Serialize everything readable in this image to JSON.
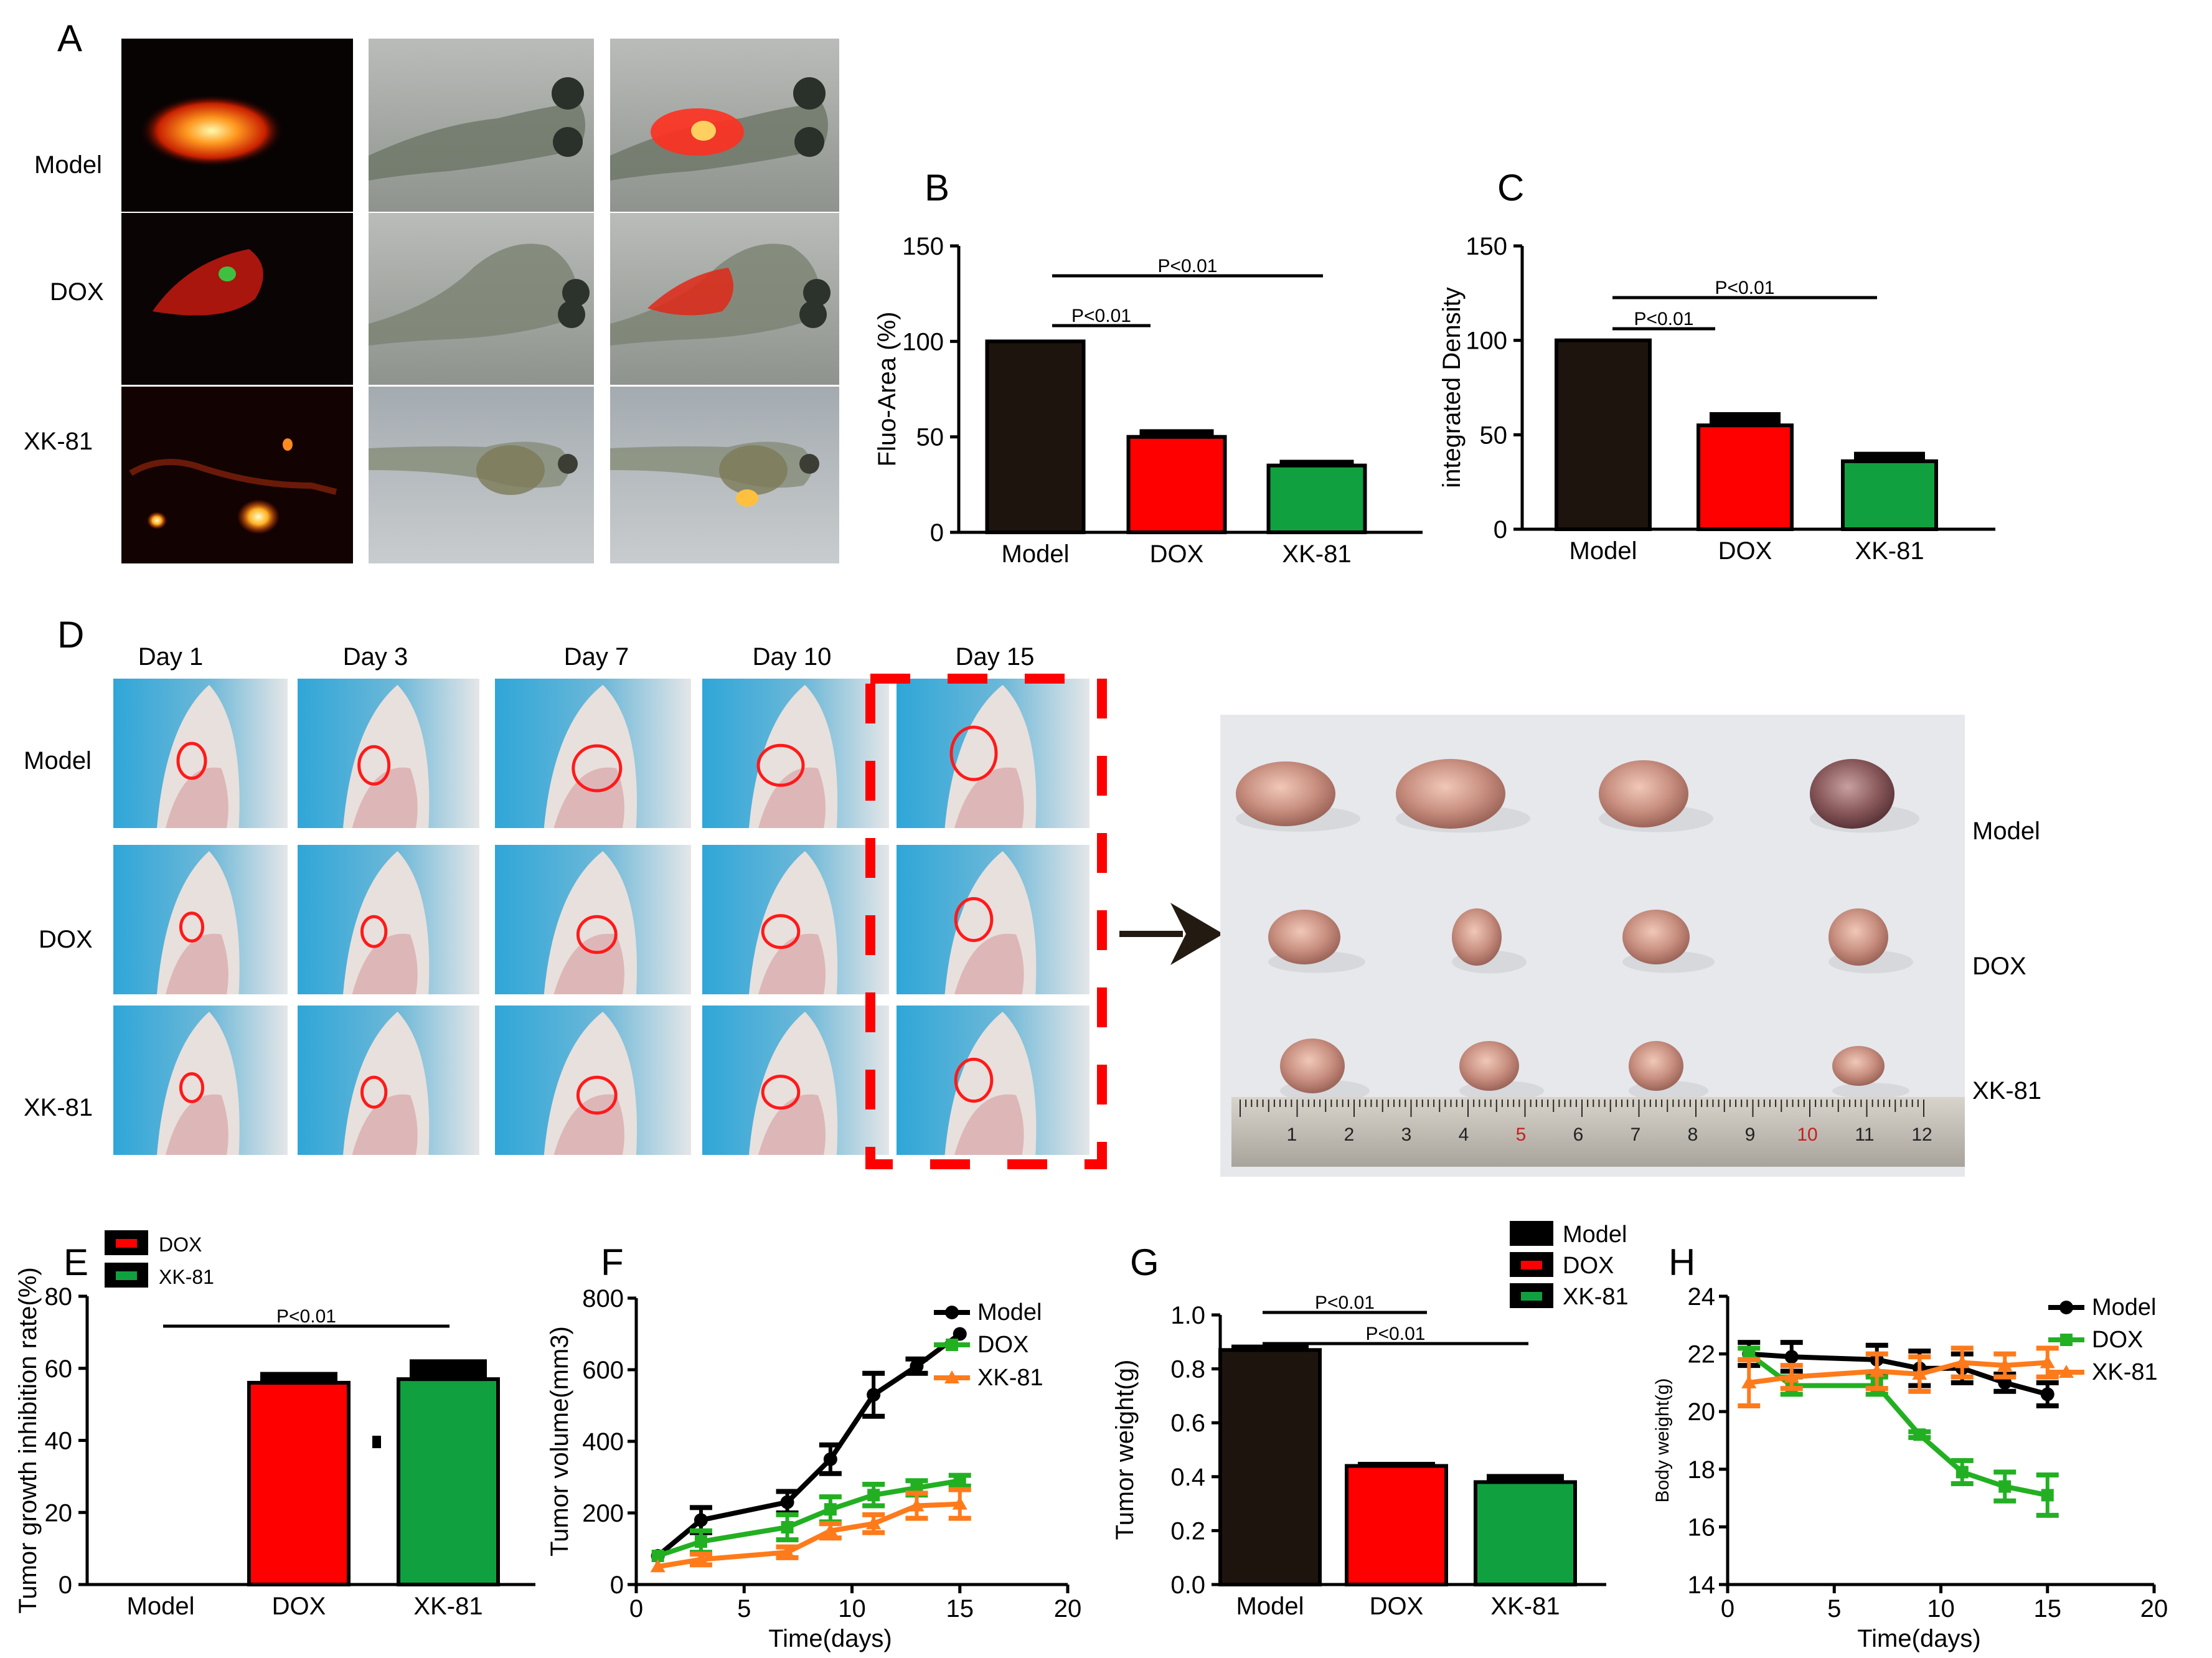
{
  "panels": {
    "A": "A",
    "B": "B",
    "C": "C",
    "D": "D",
    "E": "E",
    "F": "F",
    "G": "G",
    "H": "H"
  },
  "panel_a_rows": [
    "Model",
    "DOX",
    "XK-81"
  ],
  "panel_d_days": [
    "Day 1",
    "Day 3",
    "Day 7",
    "Day 10",
    "Day 15"
  ],
  "panel_d_rows": [
    "Model",
    "DOX",
    "XK-81"
  ],
  "tumor_photo_labels": [
    "Model",
    "DOX",
    "XK-81"
  ],
  "ruler_numbers": [
    "1",
    "2",
    "3",
    "4",
    "5",
    "6",
    "7",
    "8",
    "9",
    "10",
    "11",
    "12"
  ],
  "colors": {
    "model": "#1e140e",
    "dox": "#ff0000",
    "xk81": "#10a040",
    "model_line": "#000000",
    "dox_line": "#22b022",
    "xk81_line": "#ff7a1a",
    "dashed_box": "#ff0000"
  },
  "chart_data": [
    {
      "id": "B",
      "type": "bar",
      "ylabel": "Fluo-Area (%)",
      "categories": [
        "Model",
        "DOX",
        "XK-81"
      ],
      "values": [
        100,
        50,
        35
      ],
      "errors": [
        0,
        4,
        3
      ],
      "ylim": [
        0,
        150
      ],
      "yticks": [
        "0",
        "50",
        "100",
        "150"
      ],
      "significance": [
        {
          "label": "P<0.01",
          "from": 0,
          "to": 1
        },
        {
          "label": "P<0.01",
          "from": 0,
          "to": 2
        }
      ]
    },
    {
      "id": "C",
      "type": "bar",
      "ylabel": "integrated Density",
      "categories": [
        "Model",
        "DOX",
        "XK-81"
      ],
      "values": [
        100,
        55,
        36
      ],
      "errors": [
        0,
        7,
        5
      ],
      "ylim": [
        0,
        150
      ],
      "yticks": [
        "0",
        "50",
        "100",
        "150"
      ],
      "significance": [
        {
          "label": "P<0.01",
          "from": 0,
          "to": 1
        },
        {
          "label": "P<0.01",
          "from": 0,
          "to": 2
        }
      ]
    },
    {
      "id": "E",
      "type": "bar",
      "ylabel": "Tumor growth inhibition rate(%)",
      "categories": [
        "Model",
        "DOX",
        "XK-81"
      ],
      "values": [
        0,
        56,
        57
      ],
      "errors": [
        0,
        3,
        5.5
      ],
      "ylim": [
        0,
        80
      ],
      "yticks": [
        "0",
        "20",
        "40",
        "60",
        "80"
      ],
      "legend": [
        "DOX",
        "XK-81"
      ],
      "significance": [
        {
          "label": "P<0.01",
          "from": 0,
          "to": 2
        }
      ]
    },
    {
      "id": "F",
      "type": "line",
      "xlabel": "Time(days)",
      "ylabel": "Tumor volume(mm3)",
      "xlim": [
        0,
        20
      ],
      "ylim": [
        0,
        800
      ],
      "xticks": [
        "0",
        "5",
        "10",
        "15",
        "20"
      ],
      "yticks": [
        "0",
        "200",
        "400",
        "600",
        "800"
      ],
      "x": [
        1,
        3,
        7,
        9,
        11,
        13,
        15
      ],
      "series": [
        {
          "name": "Model",
          "values": [
            80,
            180,
            230,
            350,
            530,
            610,
            700
          ],
          "errors": [
            0,
            35,
            30,
            40,
            60,
            20,
            0
          ]
        },
        {
          "name": "DOX",
          "values": [
            80,
            120,
            160,
            210,
            250,
            270,
            290
          ],
          "errors": [
            0,
            30,
            35,
            35,
            30,
            20,
            15
          ]
        },
        {
          "name": "XK-81",
          "values": [
            50,
            70,
            90,
            150,
            170,
            220,
            225
          ],
          "errors": [
            0,
            15,
            15,
            20,
            25,
            35,
            40
          ]
        }
      ]
    },
    {
      "id": "G",
      "type": "bar",
      "ylabel": "Tumor weight(g)",
      "categories": [
        "Model",
        "DOX",
        "XK-81"
      ],
      "values": [
        0.87,
        0.44,
        0.38
      ],
      "errors": [
        0.02,
        0.015,
        0.03
      ],
      "ylim": [
        0,
        1.0
      ],
      "yticks": [
        "0.0",
        "0.2",
        "0.4",
        "0.6",
        "0.8",
        "1.0"
      ],
      "legend": [
        "Model",
        "DOX",
        "XK-81"
      ],
      "significance": [
        {
          "label": "P<0.01",
          "from": 0,
          "to": 1
        },
        {
          "label": "P<0.01",
          "from": 0,
          "to": 2
        }
      ]
    },
    {
      "id": "H",
      "type": "line",
      "xlabel": "Time(days)",
      "ylabel": "Body weight(g)",
      "xlim": [
        0,
        20
      ],
      "ylim": [
        14,
        24
      ],
      "xticks": [
        "0",
        "5",
        "10",
        "15",
        "20"
      ],
      "yticks": [
        "14",
        "16",
        "18",
        "20",
        "22",
        "24"
      ],
      "x": [
        1,
        3,
        7,
        9,
        11,
        13,
        15
      ],
      "series": [
        {
          "name": "Model",
          "values": [
            22.0,
            21.9,
            21.8,
            21.5,
            21.5,
            21.0,
            20.6
          ],
          "errors": [
            0.4,
            0.5,
            0.5,
            0.6,
            0.5,
            0.3,
            0.4
          ]
        },
        {
          "name": "DOX",
          "values": [
            22.0,
            20.9,
            20.9,
            19.2,
            17.9,
            17.4,
            17.1
          ],
          "errors": [
            0.2,
            0.3,
            0.3,
            0.1,
            0.4,
            0.5,
            0.7
          ]
        },
        {
          "name": "XK-81",
          "values": [
            21.0,
            21.2,
            21.4,
            21.3,
            21.7,
            21.6,
            21.7
          ],
          "errors": [
            0.8,
            0.4,
            0.6,
            0.6,
            0.5,
            0.4,
            0.5
          ]
        }
      ]
    }
  ]
}
